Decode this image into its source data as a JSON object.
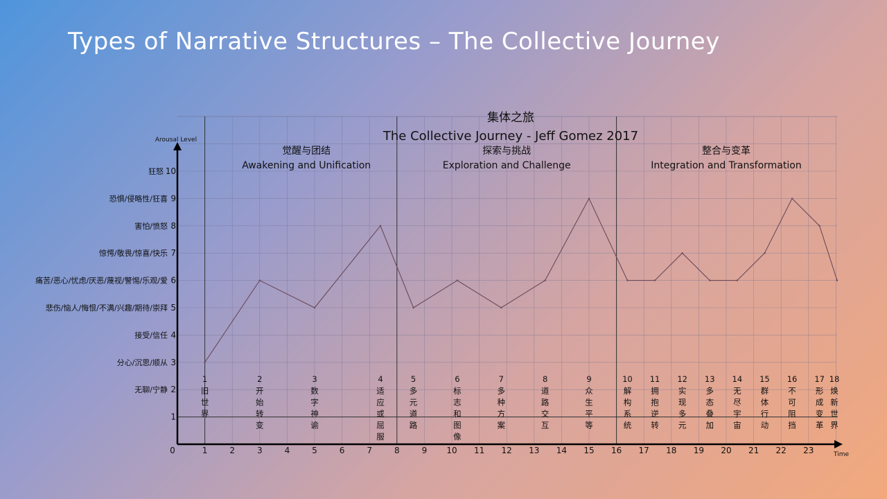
{
  "slide": {
    "title": "Types of Narrative Structures – The Collective Journey"
  },
  "chart_data": {
    "type": "line",
    "title": "集体之旅",
    "subtitle": "The Collective Journey - Jeff Gomez 2017",
    "xlabel": "Time",
    "ylabel": "Arousal Level",
    "xlim": [
      0,
      24
    ],
    "ylim": [
      0,
      10
    ],
    "x_ticks": [
      0,
      1,
      2,
      3,
      4,
      5,
      6,
      7,
      8,
      9,
      10,
      11,
      12,
      13,
      14,
      15,
      16,
      17,
      18,
      19,
      20,
      21,
      22,
      23
    ],
    "y_ticks": [
      {
        "value": 10,
        "label": "狂怒"
      },
      {
        "value": 9,
        "label": "恐惧/侵略性/狂喜"
      },
      {
        "value": 8,
        "label": "害怕/愤怒"
      },
      {
        "value": 7,
        "label": "惊愕/敬畏/惊喜/快乐"
      },
      {
        "value": 6,
        "label": "痛苦/恶心/忧虑/厌恶/蔑视/警惕/乐观/爱"
      },
      {
        "value": 5,
        "label": "悲伤/恼人/悔恨/不满/兴趣/期待/崇拜"
      },
      {
        "value": 4,
        "label": "接受/信任"
      },
      {
        "value": 3,
        "label": "分心/沉思/顺从"
      },
      {
        "value": 2,
        "label": "无聊/宁静"
      },
      {
        "value": 1,
        "label": ""
      }
    ],
    "grid": true,
    "phases": [
      {
        "zh": "觉醒与团结",
        "en": "Awakening and Unification",
        "x_start": 1,
        "x_end": 8
      },
      {
        "zh": "探索与挑战",
        "en": "Exploration and Challenge",
        "x_start": 8,
        "x_end": 16
      },
      {
        "zh": "整合与变革",
        "en": "Integration and Transformation",
        "x_start": 16,
        "x_end": 24
      }
    ],
    "series": [
      {
        "x": [
          1,
          3,
          5,
          7.4,
          8.6,
          10.2,
          11.8,
          13.4,
          15,
          16.4,
          17.4,
          18.4,
          19.4,
          20.4,
          21.4,
          22.4,
          23.4,
          24.4
        ],
        "y": [
          3,
          6,
          5,
          8,
          5,
          6,
          5,
          6,
          9,
          6,
          6,
          7,
          6,
          6,
          7,
          9,
          8,
          6
        ]
      }
    ],
    "stages": [
      {
        "num": "1",
        "x": 1,
        "chars": [
          "旧",
          "世",
          "界"
        ]
      },
      {
        "num": "2",
        "x": 3,
        "chars": [
          "开",
          "始",
          "转",
          "变"
        ]
      },
      {
        "num": "3",
        "x": 5,
        "chars": [
          "数",
          "字",
          "神",
          "谕"
        ]
      },
      {
        "num": "4",
        "x": 7.4,
        "chars": [
          "适",
          "应",
          "或",
          "屈",
          "服"
        ]
      },
      {
        "num": "5",
        "x": 8.6,
        "chars": [
          "多",
          "元",
          "道",
          "路"
        ]
      },
      {
        "num": "6",
        "x": 10.2,
        "chars": [
          "标",
          "志",
          "和",
          "图",
          "像"
        ]
      },
      {
        "num": "7",
        "x": 11.8,
        "chars": [
          "多",
          "种",
          "方",
          "案"
        ]
      },
      {
        "num": "8",
        "x": 13.4,
        "chars": [
          "道",
          "路",
          "交",
          "互"
        ]
      },
      {
        "num": "9",
        "x": 15,
        "chars": [
          "众",
          "生",
          "平",
          "等"
        ]
      },
      {
        "num": "10",
        "x": 16.4,
        "chars": [
          "解",
          "构",
          "系",
          "统"
        ]
      },
      {
        "num": "11",
        "x": 17.4,
        "chars": [
          "拥",
          "抱",
          "逆",
          "转"
        ]
      },
      {
        "num": "12",
        "x": 18.4,
        "chars": [
          "实",
          "现",
          "多",
          "元"
        ]
      },
      {
        "num": "13",
        "x": 19.4,
        "chars": [
          "多",
          "态",
          "叠",
          "加"
        ]
      },
      {
        "num": "14",
        "x": 20.4,
        "chars": [
          "无",
          "尽",
          "宇",
          "宙"
        ]
      },
      {
        "num": "15",
        "x": 21.4,
        "chars": [
          "群",
          "体",
          "行",
          "动"
        ]
      },
      {
        "num": "16",
        "x": 22.4,
        "chars": [
          "不",
          "可",
          "阻",
          "挡"
        ]
      },
      {
        "num": "17",
        "x": 23.4,
        "chars": [
          "形",
          "成",
          "变",
          "革"
        ]
      },
      {
        "num": "18",
        "x": 24.4,
        "chars": [
          "焕",
          "新",
          "世",
          "界"
        ]
      }
    ],
    "colors": {
      "axis": "#000000",
      "grid": "#6f6f8f",
      "line": "#6a4a5a",
      "text": "#111111"
    }
  }
}
